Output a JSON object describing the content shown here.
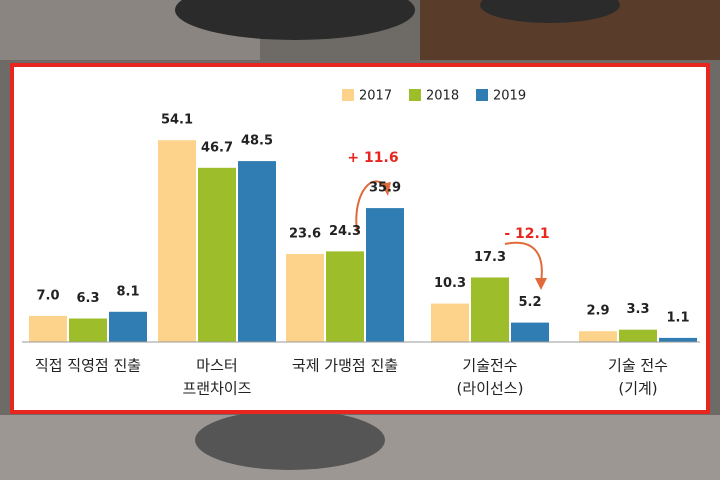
{
  "chart_data": {
    "type": "bar",
    "categories": [
      [
        "직접 직영점 진출"
      ],
      [
        "마스터",
        "프랜차이즈"
      ],
      [
        "국제 가맹점 진출"
      ],
      [
        "기술전수",
        "(라이선스)"
      ],
      [
        "기술 전수",
        "(기계)"
      ]
    ],
    "series": [
      {
        "name": "2017",
        "color": "#fdd38c",
        "values": [
          7.0,
          54.1,
          23.6,
          10.3,
          2.9
        ],
        "value_labels": [
          "7.0",
          "54.1",
          "23.6",
          "10.3",
          "2.9"
        ]
      },
      {
        "name": "2018",
        "color": "#9dbd2a",
        "values": [
          6.3,
          46.7,
          24.3,
          17.3,
          3.3
        ],
        "value_labels": [
          "6.3",
          "46.7",
          "24.3",
          "17.3",
          "3.3"
        ]
      },
      {
        "name": "2019",
        "color": "#2f7db3",
        "values": [
          8.1,
          48.5,
          35.9,
          5.2,
          1.1
        ],
        "value_labels": [
          "8.1",
          "48.5",
          "35.9",
          "5.2",
          "1.1"
        ]
      }
    ],
    "annotations": [
      {
        "text": "+ 11.6"
      },
      {
        "text": "- 12.1"
      }
    ]
  }
}
